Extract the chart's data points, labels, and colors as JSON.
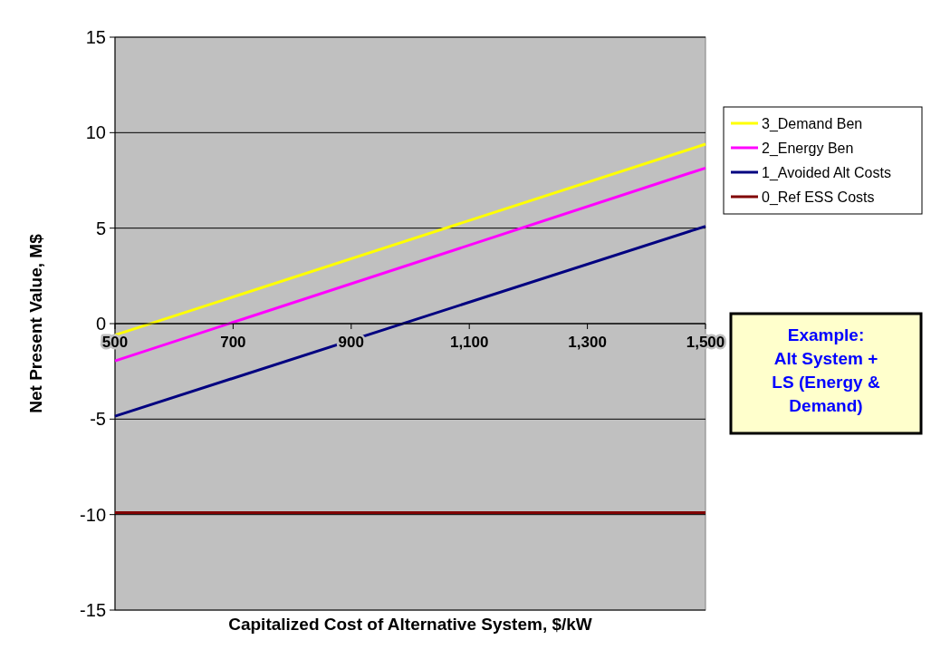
{
  "chart_data": {
    "type": "line",
    "xlabel": "Capitalized Cost of Alternative System, $/kW",
    "ylabel": "Net Present Value, M$",
    "x": [
      500,
      1500
    ],
    "series": [
      {
        "name": "3_Demand Ben",
        "color": "#ffff00",
        "values": [
          -0.6,
          9.4
        ]
      },
      {
        "name": "2_Energy Ben",
        "color": "#ff00ff",
        "values": [
          -1.95,
          8.15
        ]
      },
      {
        "name": "1_Avoided Alt Costs",
        "color": "#000080",
        "values": [
          -4.85,
          5.1
        ]
      },
      {
        "name": "0_Ref ESS Costs",
        "color": "#800000",
        "values": [
          -9.9,
          -9.9
        ]
      }
    ],
    "xlim": [
      500,
      1500
    ],
    "xticks": [
      500,
      700,
      900,
      {
        "value": 1100,
        "label": "1,100"
      },
      {
        "value": 1300,
        "label": "1,300"
      },
      {
        "value": 1500,
        "label": "1,500"
      }
    ],
    "ylim": [
      -15,
      15
    ],
    "yticks": [
      -15,
      -10,
      -5,
      0,
      5,
      10,
      15
    ],
    "grid": "y",
    "legend": "right",
    "marker": "none",
    "line_style": "solid",
    "annotations": [
      "Example:\nAlt System +\nLS (Energy &\nDemand)"
    ]
  }
}
